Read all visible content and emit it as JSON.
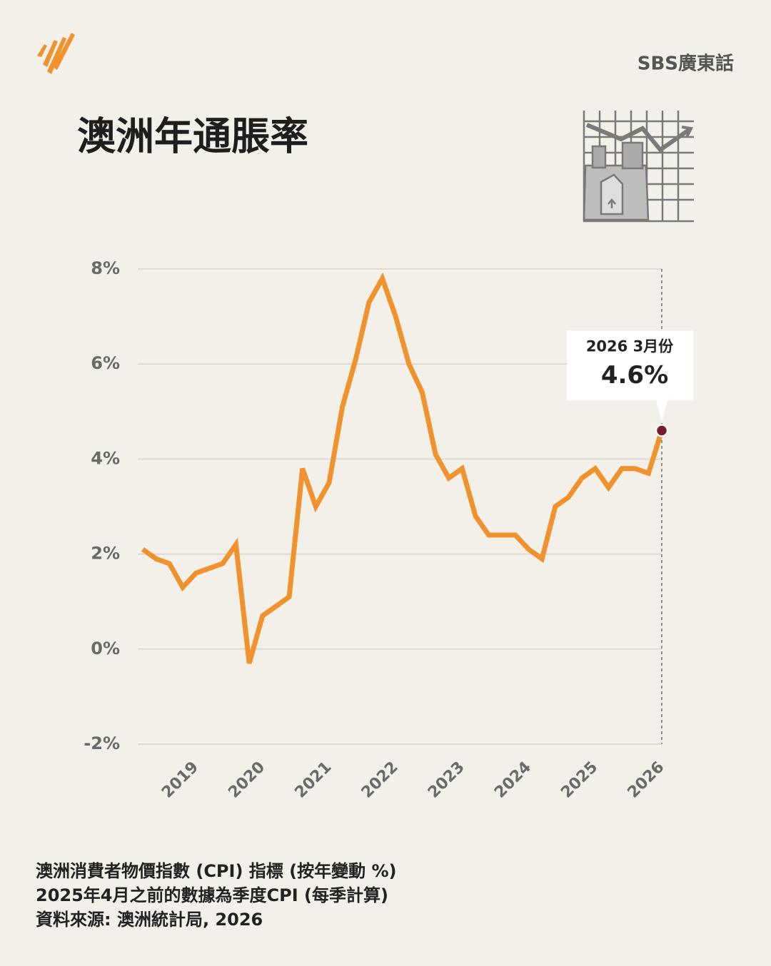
{
  "brand": "SBS廣東話",
  "chart_data": {
    "type": "line",
    "title": "澳洲年通脹率",
    "categories": [
      null,
      null,
      null,
      null,
      "2019",
      null,
      null,
      null,
      null,
      "2020",
      null,
      null,
      null,
      null,
      "2021",
      null,
      null,
      null,
      null,
      "2022",
      null,
      null,
      null,
      null,
      "2023",
      null,
      null,
      null,
      null,
      "2024",
      null,
      null,
      null,
      null,
      "2025",
      null,
      null,
      null,
      null,
      "2026"
    ],
    "series": [
      {
        "name": "CPI",
        "color": "#f0922e",
        "values": [
          2.1,
          1.9,
          1.8,
          1.3,
          1.6,
          1.7,
          1.8,
          2.2,
          -0.3,
          0.7,
          0.9,
          1.1,
          3.8,
          3.0,
          3.5,
          5.1,
          6.1,
          7.3,
          7.8,
          7.0,
          6.0,
          5.4,
          4.1,
          3.6,
          3.8,
          2.8,
          2.4,
          2.4,
          2.4,
          2.1,
          1.9,
          3.0,
          3.2,
          3.6,
          3.8,
          3.4,
          3.8,
          3.8,
          3.7,
          4.6
        ],
        "value_labels": [
          null,
          null,
          null,
          null,
          null,
          null,
          null,
          null,
          null,
          null,
          null,
          null,
          null,
          null,
          null,
          null,
          null,
          null,
          null,
          null,
          null,
          null,
          null,
          null,
          null,
          null,
          null,
          null,
          null,
          null,
          null,
          null,
          null,
          null,
          null,
          null,
          null,
          null,
          null,
          "4.6%"
        ]
      }
    ],
    "annotation": "2026 3月份",
    "marker_color": "#7a1a2c",
    "ylim": [
      -2,
      8
    ],
    "yticks": [
      {
        "value": -2,
        "label": "-2%"
      },
      {
        "value": 0,
        "label": "0%"
      },
      {
        "value": 2,
        "label": "2%"
      },
      {
        "value": 4,
        "label": "4%"
      },
      {
        "value": 6,
        "label": "6%"
      },
      {
        "value": 8,
        "label": "8%"
      }
    ],
    "grid": true,
    "notes": [
      "澳洲消費者物價指數 (CPI) 指標 (按年變動 %)",
      "2025年4月之前的數據為季度CPI (每季計算)",
      "資料來源: 澳洲統計局, 2026"
    ]
  }
}
